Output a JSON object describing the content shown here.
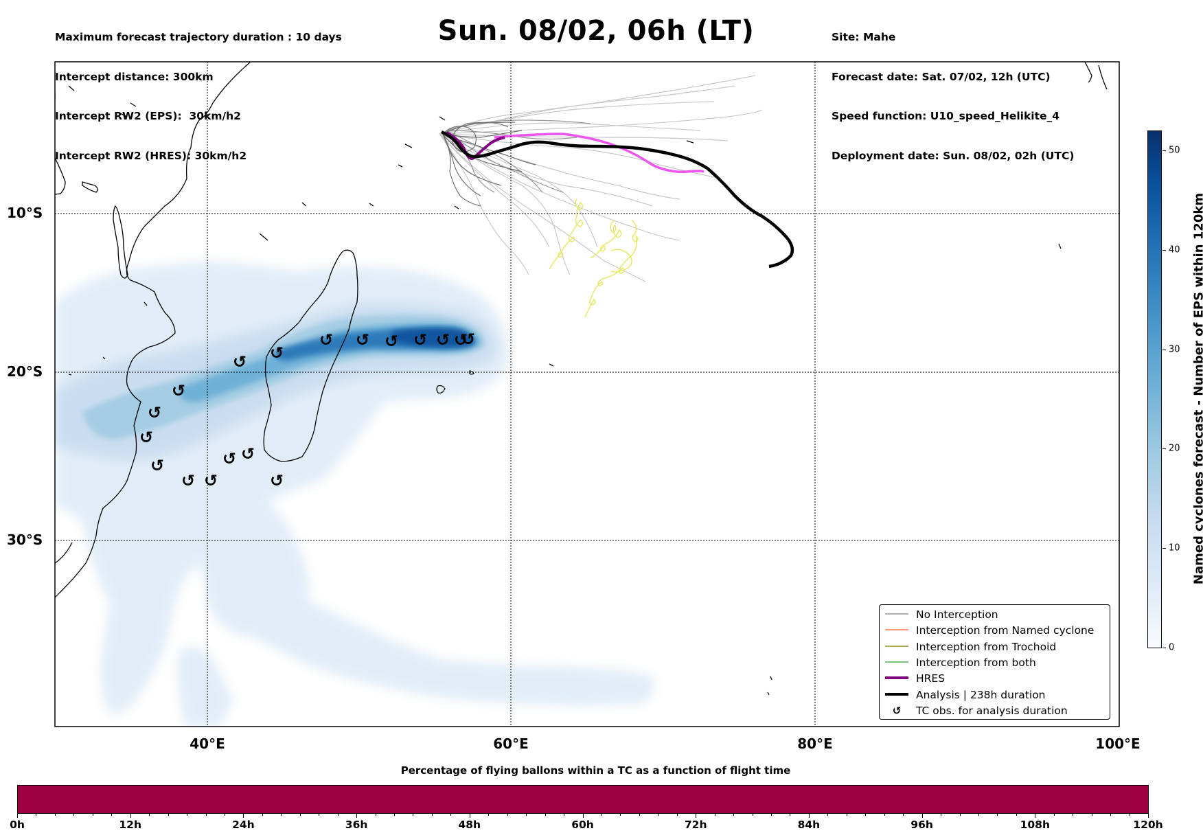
{
  "header": {
    "left_lines": [
      "Maximum forecast trajectory duration : 10 days",
      "Intercept distance: 300km",
      "Intercept RW2 (EPS):  30km/h2",
      "Intercept RW2 (HRES): 30km/h2"
    ],
    "title": "Sun. 08/02, 06h (LT)",
    "right_lines": [
      "Site: Mahe",
      "Forecast date: Sat. 07/02, 12h (UTC)",
      "Speed function: U10_speed_Helikite_4",
      "Deployment date: Sun. 08/02, 02h (UTC)"
    ]
  },
  "map": {
    "lat_labels": [
      "10°S",
      "20°S",
      "30°S"
    ],
    "lon_labels": [
      "40°E",
      "60°E",
      "80°E",
      "100°E"
    ],
    "track_colors": {
      "no_interception": "#808080",
      "named_cyclone": "#ff5722",
      "trochoid": "#808000",
      "both": "#2ca02c",
      "hres": "#800080",
      "hres_extension": "#ee55ee",
      "analysis": "#000000",
      "trochoid_loops": "#e8e86a"
    },
    "density_color": "#2171b5",
    "tc_marker_icon": "cyclone-icon"
  },
  "legend": {
    "items": [
      {
        "label": "No Interception",
        "color": "#808080",
        "kind": "thin"
      },
      {
        "label": "Interception from Named cyclone",
        "color": "#ff5722",
        "kind": "thin"
      },
      {
        "label": "Interception from Trochoid",
        "color": "#808000",
        "kind": "thin"
      },
      {
        "label": "Interception from both",
        "color": "#2ca02c",
        "kind": "thin"
      },
      {
        "label": "HRES",
        "color": "#800080",
        "kind": "thick"
      },
      {
        "label": "Analysis | 238h duration",
        "color": "#000000",
        "kind": "thick"
      },
      {
        "label": "TC obs. for analysis duration",
        "color": "#000000",
        "kind": "marker"
      }
    ]
  },
  "colorbar_vertical": {
    "label": "Named cyclones forecast - Number of EPS within 120km",
    "ticks": [
      "0",
      "10",
      "20",
      "30",
      "40",
      "50"
    ],
    "max": 52
  },
  "colorbar_horizontal": {
    "title": "Percentage of flying ballons within a TC as a function of flight time",
    "ticks": [
      "0h",
      "12h",
      "24h",
      "36h",
      "48h",
      "60h",
      "72h",
      "84h",
      "96h",
      "108h",
      "120h"
    ],
    "fill_color": "#9e0041"
  }
}
